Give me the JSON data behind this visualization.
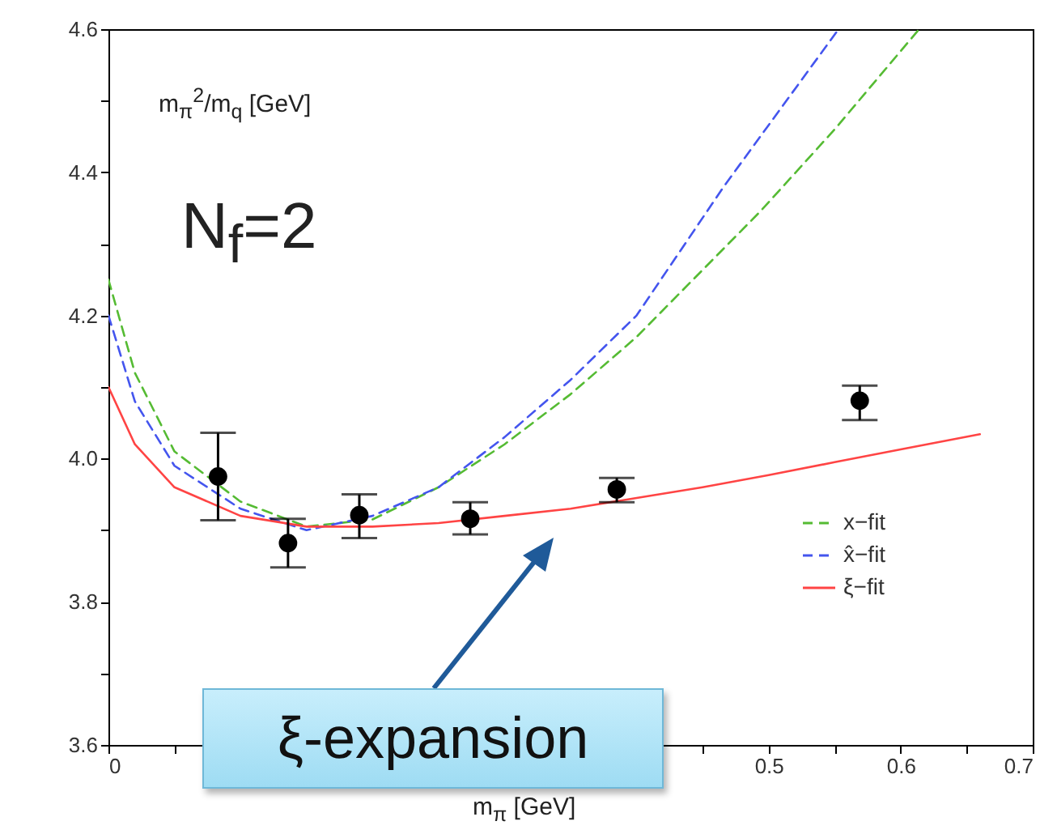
{
  "chart_data": {
    "type": "line",
    "xlabel": "m$_{π}$ [GeV]",
    "ylabel": "m$_{π}$$^{2}$/m$_{q}$ [GeV]",
    "annotations": [
      "N$_{f}$=2",
      "ξ-expansion"
    ],
    "xlim": [
      0,
      0.7
    ],
    "ylim": [
      3.6,
      4.6
    ],
    "xticks": [
      0,
      {
        "value": 0.05,
        "label": null
      },
      {
        "value": 0.1,
        "label": null
      },
      {
        "value": 0.15,
        "label": null
      },
      {
        "value": 0.2,
        "label": null
      },
      {
        "value": 0.25,
        "label": null
      },
      {
        "value": 0.3,
        "label": null
      },
      {
        "value": 0.35,
        "label": null
      },
      {
        "value": 0.4,
        "label": null
      },
      {
        "value": 0.45,
        "label": null
      },
      0.5,
      {
        "value": 0.55,
        "label": null
      },
      0.6,
      {
        "value": 0.65,
        "label": null
      },
      0.7
    ],
    "yticks": [
      3.6,
      {
        "value": 3.7,
        "label": null
      },
      3.8,
      {
        "value": 3.9,
        "label": null
      },
      {
        "value": 4,
        "label": "4.0"
      },
      {
        "value": 4.1,
        "label": null
      },
      4.2,
      {
        "value": 4.3,
        "label": null
      },
      4.4,
      {
        "value": 4.5,
        "label": null
      },
      4.6
    ],
    "legend": "bottom right",
    "grid": false,
    "series": [
      {
        "name": "x−fit",
        "color": "#55bb33",
        "line_style": "dashed",
        "x": [
          0,
          0.02,
          0.05,
          0.1,
          0.15,
          0.2,
          0.25,
          0.3,
          0.35,
          0.4,
          0.494,
          0.55,
          0.614
        ],
        "values": [
          4.25,
          4.12,
          4.01,
          3.94,
          3.905,
          3.915,
          3.96,
          4.02,
          4.09,
          4.17,
          4.346,
          4.46,
          4.6
        ]
      },
      {
        "name": "x̂−fit",
        "color": "#4455ee",
        "line_style": "dashed",
        "x": [
          0,
          0.02,
          0.05,
          0.1,
          0.15,
          0.2,
          0.25,
          0.3,
          0.35,
          0.4,
          0.466,
          0.553
        ],
        "values": [
          4.2,
          4.08,
          3.99,
          3.93,
          3.9,
          3.92,
          3.96,
          4.03,
          4.11,
          4.2,
          4.38,
          4.6
        ]
      },
      {
        "name": "ξ−fit",
        "color": "#ff4444",
        "line_style": "solid",
        "x": [
          0,
          0.02,
          0.05,
          0.1,
          0.15,
          0.2,
          0.25,
          0.3,
          0.35,
          0.4,
          0.45,
          0.5,
          0.55,
          0.6,
          0.66
        ],
        "values": [
          4.1,
          4.02,
          3.96,
          3.92,
          3.905,
          3.905,
          3.91,
          3.92,
          3.93,
          3.945,
          3.96,
          3.977,
          3.995,
          4.013,
          4.034
        ]
      },
      {
        "type": "scatter",
        "color": "#000000",
        "marker": "circle",
        "x": [
          0.083,
          0.136,
          0.19,
          0.274,
          0.385,
          0.569
        ],
        "values": [
          3.975,
          3.882,
          3.921,
          3.916,
          3.957,
          4.081
        ],
        "errors": [
          [
            3.914,
            4.036
          ],
          [
            3.848,
            3.916
          ],
          [
            3.889,
            3.95
          ],
          [
            3.894,
            3.939
          ],
          [
            3.939,
            3.973
          ],
          [
            4.054,
            4.102
          ]
        ]
      }
    ]
  }
}
